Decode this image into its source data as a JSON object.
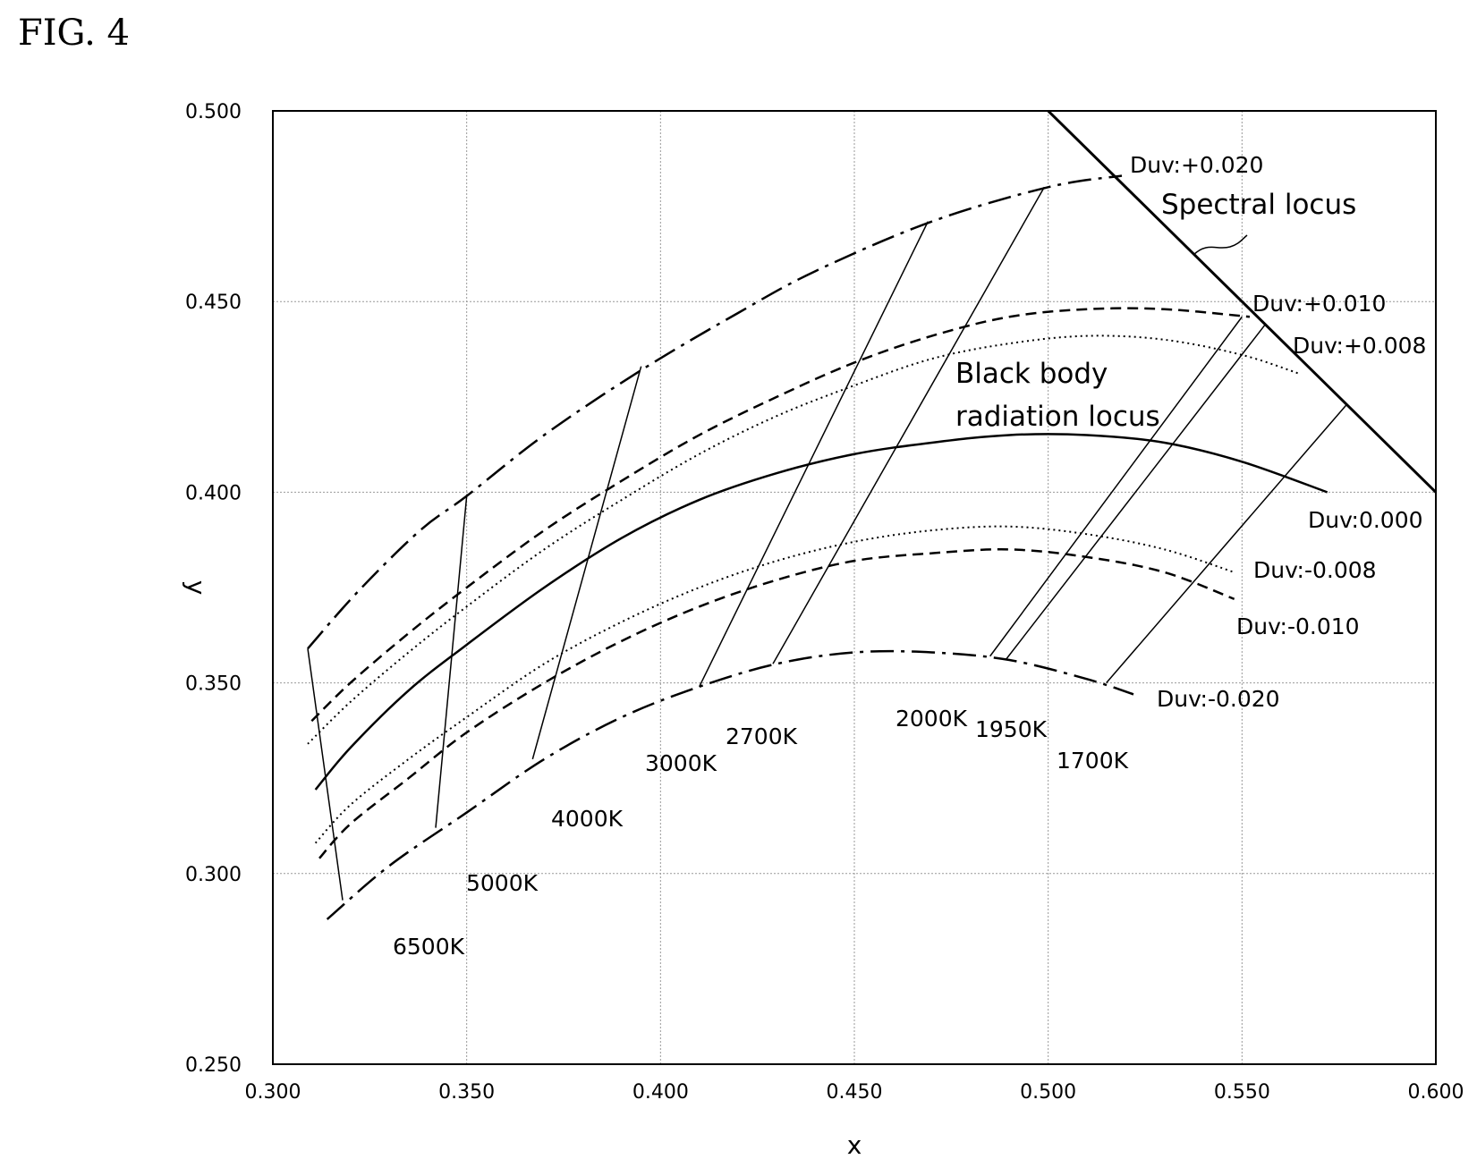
{
  "figure_label": "FIG. 4",
  "chart_data": {
    "type": "line",
    "xlabel": "x",
    "ylabel": "y",
    "xlim": [
      0.3,
      0.6
    ],
    "ylim": [
      0.25,
      0.5
    ],
    "xticks": [
      "0.300",
      "0.350",
      "0.400",
      "0.450",
      "0.500",
      "0.550",
      "0.600"
    ],
    "yticks": [
      "0.250",
      "0.300",
      "0.350",
      "0.400",
      "0.450",
      "0.500"
    ],
    "grid": true,
    "series": [
      {
        "name": "Duv:+0.020",
        "style": "dashdot",
        "x": [
          0.309,
          0.322,
          0.338,
          0.35,
          0.37,
          0.395,
          0.42,
          0.44,
          0.47,
          0.5,
          0.519
        ],
        "y": [
          0.359,
          0.374,
          0.39,
          0.399,
          0.415,
          0.432,
          0.447,
          0.458,
          0.471,
          0.48,
          0.483
        ]
      },
      {
        "name": "Duv:+0.010",
        "style": "dashed",
        "x": [
          0.31,
          0.32,
          0.335,
          0.35,
          0.37,
          0.39,
          0.41,
          0.43,
          0.45,
          0.47,
          0.49,
          0.51,
          0.53,
          0.552
        ],
        "y": [
          0.34,
          0.35,
          0.363,
          0.375,
          0.39,
          0.403,
          0.415,
          0.425,
          0.434,
          0.441,
          0.446,
          0.448,
          0.448,
          0.446
        ]
      },
      {
        "name": "Duv:+0.008",
        "style": "dotted",
        "x": [
          0.309,
          0.32,
          0.335,
          0.35,
          0.37,
          0.39,
          0.41,
          0.43,
          0.45,
          0.47,
          0.49,
          0.51,
          0.53,
          0.55,
          0.565
        ],
        "y": [
          0.334,
          0.345,
          0.358,
          0.37,
          0.385,
          0.398,
          0.41,
          0.42,
          0.428,
          0.435,
          0.439,
          0.441,
          0.44,
          0.436,
          0.431
        ]
      },
      {
        "name": "Duv:0.000",
        "style": "solid",
        "x": [
          0.311,
          0.32,
          0.335,
          0.35,
          0.37,
          0.39,
          0.41,
          0.43,
          0.45,
          0.47,
          0.49,
          0.51,
          0.53,
          0.55,
          0.572
        ],
        "y": [
          0.322,
          0.333,
          0.348,
          0.36,
          0.375,
          0.388,
          0.398,
          0.405,
          0.41,
          0.413,
          0.415,
          0.415,
          0.413,
          0.408,
          0.4
        ]
      },
      {
        "name": "Duv:-0.008",
        "style": "dotted",
        "x": [
          0.311,
          0.32,
          0.335,
          0.35,
          0.37,
          0.39,
          0.41,
          0.43,
          0.45,
          0.47,
          0.49,
          0.51,
          0.53,
          0.548
        ],
        "y": [
          0.308,
          0.318,
          0.33,
          0.341,
          0.355,
          0.366,
          0.375,
          0.382,
          0.387,
          0.39,
          0.391,
          0.389,
          0.385,
          0.379
        ]
      },
      {
        "name": "Duv:-0.010",
        "style": "dashed",
        "x": [
          0.312,
          0.32,
          0.335,
          0.35,
          0.37,
          0.39,
          0.41,
          0.43,
          0.45,
          0.47,
          0.49,
          0.51,
          0.53,
          0.548
        ],
        "y": [
          0.304,
          0.313,
          0.325,
          0.337,
          0.35,
          0.361,
          0.37,
          0.377,
          0.382,
          0.384,
          0.385,
          0.383,
          0.379,
          0.372
        ]
      },
      {
        "name": "Duv:-0.020",
        "style": "dashdot",
        "x": [
          0.314,
          0.33,
          0.35,
          0.37,
          0.39,
          0.41,
          0.43,
          0.45,
          0.47,
          0.49,
          0.51,
          0.522
        ],
        "y": [
          0.288,
          0.302,
          0.316,
          0.33,
          0.341,
          0.349,
          0.355,
          0.358,
          0.358,
          0.356,
          0.351,
          0.347
        ]
      },
      {
        "name": "Spectral locus",
        "style": "solid-thick",
        "x": [
          0.5,
          0.6
        ],
        "y": [
          0.5,
          0.4
        ]
      }
    ],
    "isotherms": [
      {
        "label": "6500K",
        "x": [
          0.309,
          0.318
        ],
        "y": [
          0.359,
          0.293
        ]
      },
      {
        "label": "5000K",
        "x": [
          0.35,
          0.342
        ],
        "y": [
          0.399,
          0.312
        ]
      },
      {
        "label": "4000K",
        "x": [
          0.395,
          0.367
        ],
        "y": [
          0.433,
          0.33
        ]
      },
      {
        "label": "3000K",
        "x": [
          0.469,
          0.41
        ],
        "y": [
          0.471,
          0.349
        ]
      },
      {
        "label": "2700K",
        "x": [
          0.499,
          0.429
        ],
        "y": [
          0.48,
          0.355
        ]
      },
      {
        "label": "2000K",
        "x": [
          0.55,
          0.485
        ],
        "y": [
          0.446,
          0.357
        ]
      },
      {
        "label": "1950K",
        "x": [
          0.556,
          0.489
        ],
        "y": [
          0.444,
          0.356
        ]
      },
      {
        "label": "1700K",
        "x": [
          0.577,
          0.515
        ],
        "y": [
          0.423,
          0.35
        ]
      }
    ],
    "annotations": {
      "duv_p020": "Duv:+0.020",
      "duv_p010": "Duv:+0.010",
      "duv_p008": "Duv:+0.008",
      "duv_000": "Duv:0.000",
      "duv_m008": "Duv:-0.008",
      "duv_m010": "Duv:-0.010",
      "duv_m020": "Duv:-0.020",
      "spectral": "Spectral locus",
      "blackbody_1": "Black body",
      "blackbody_2": "radiation locus"
    }
  }
}
